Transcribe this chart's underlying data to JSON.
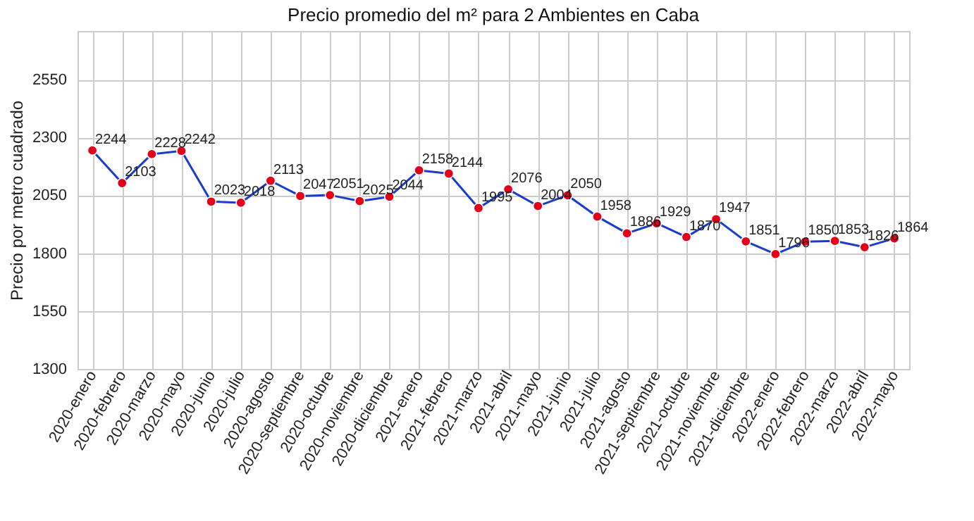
{
  "chart_data": {
    "type": "line",
    "title": "Precio promedio del m² para 2 Ambientes en Caba",
    "ylabel": "Precio por metro cuadrado",
    "categories": [
      "2020-enero",
      "2020-febrero",
      "2020-marzo",
      "2020-mayo",
      "2020-junio",
      "2020-julio",
      "2020-agosto",
      "2020-septiembre",
      "2020-octubre",
      "2020-noviembre",
      "2020-diciembre",
      "2021-enero",
      "2021-febrero",
      "2021-marzo",
      "2021-abril",
      "2021-mayo",
      "2021-junio",
      "2021-julio",
      "2021-agosto",
      "2021-septiembre",
      "2021-octubre",
      "2021-noviembre",
      "2021-diciembre",
      "2022-enero",
      "2022-febrero",
      "2022-marzo",
      "2022-abril",
      "2022-mayo"
    ],
    "series": [
      {
        "color": "#1a3ccc",
        "colors": [
          "#e3001b",
          "#e3001b",
          "#e3001b",
          "#e3001b",
          "#e3001b",
          "#e3001b",
          "#e3001b",
          "#e3001b",
          "#e3001b",
          "#e3001b",
          "#e3001b",
          "#e3001b",
          "#e3001b",
          "#e3001b",
          "#e3001b",
          "#e3001b",
          "#e3001b",
          "#e3001b",
          "#e3001b",
          "#e3001b",
          "#e3001b",
          "#e3001b",
          "#e3001b",
          "#e3001b",
          "#e3001b",
          "#e3001b",
          "#e3001b",
          "#e3001b"
        ],
        "values": [
          2244,
          2103,
          2228,
          2242,
          2023,
          2018,
          2113,
          2047,
          2051,
          2025,
          2044,
          2158,
          2144,
          1995,
          2076,
          2004,
          2050,
          1958,
          1886,
          1929,
          1870,
          1947,
          1851,
          1796,
          1850,
          1853,
          1826,
          1864
        ]
      }
    ],
    "ylim": [
      1300,
      2760
    ],
    "yticks": [
      1300,
      1550,
      1800,
      2050,
      2300,
      2550
    ],
    "grid": true,
    "marker": "circle",
    "line_style": "solid",
    "data_labels": true
  }
}
